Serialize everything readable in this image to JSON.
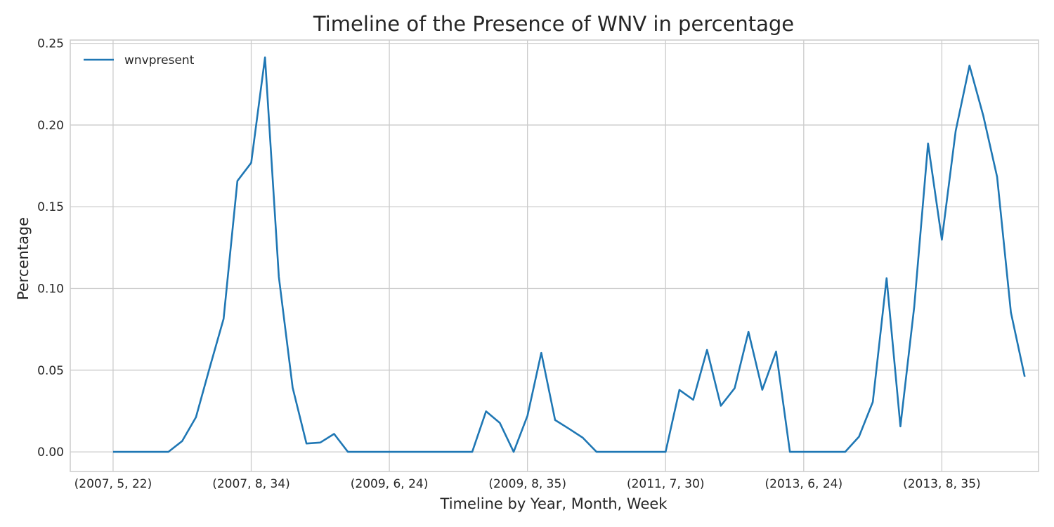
{
  "chart_data": {
    "type": "line",
    "title": "Timeline of the Presence of WNV in percentage",
    "xlabel": "Timeline by Year, Month, Week",
    "ylabel": "Percentage",
    "ylim": [
      -0.012,
      0.252
    ],
    "yticks": [
      0.0,
      0.05,
      0.1,
      0.15,
      0.2,
      0.25
    ],
    "ytick_labels": [
      "0.00",
      "0.05",
      "0.10",
      "0.15",
      "0.20",
      "0.25"
    ],
    "xtick_positions": [
      0,
      10,
      20,
      30,
      40,
      50,
      60
    ],
    "xtick_labels": [
      "(2007, 5, 22)",
      "(2007, 8, 34)",
      "(2009, 6, 24)",
      "(2009, 8, 35)",
      "(2011, 7, 30)",
      "(2013, 6, 24)",
      "(2013, 8, 35)"
    ],
    "xlim": [
      -3.1,
      67.0
    ],
    "grid": true,
    "legend_position": "top-left",
    "series": [
      {
        "name": "wnvpresent",
        "color": "#1f77b4",
        "values": [
          0.0,
          0.0,
          0.0,
          0.0,
          0.0,
          0.0066,
          0.0212,
          0.0517,
          0.0814,
          0.1658,
          0.1769,
          0.2414,
          0.1071,
          0.0393,
          0.0051,
          0.0057,
          0.011,
          0.0,
          0.0,
          0.0,
          0.0,
          0.0,
          0.0,
          0.0,
          0.0,
          0.0,
          0.0,
          0.0248,
          0.0177,
          0.0,
          0.0221,
          0.0606,
          0.0195,
          0.0142,
          0.0087,
          0.0,
          0.0,
          0.0,
          0.0,
          0.0,
          0.0,
          0.0379,
          0.0319,
          0.0624,
          0.0282,
          0.039,
          0.0735,
          0.038,
          0.0614,
          0.0,
          0.0,
          0.0,
          0.0,
          0.0,
          0.0093,
          0.0305,
          0.1063,
          0.0156,
          0.0888,
          0.1887,
          0.1298,
          0.1963,
          0.2364,
          0.2057,
          0.1683,
          0.0853,
          0.046
        ]
      }
    ]
  }
}
